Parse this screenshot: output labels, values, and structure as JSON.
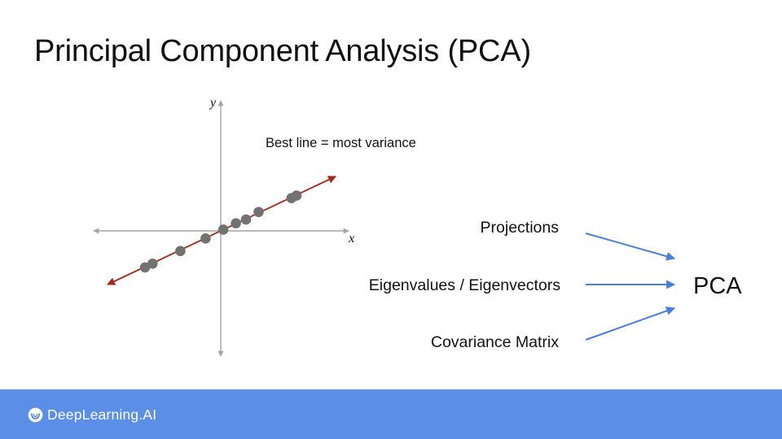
{
  "title": "Principal Component Analysis (PCA)",
  "plot": {
    "x_axis_label": "x",
    "y_axis_label": "y",
    "caption": "Best line = most variance",
    "points": [
      [
        -3.0,
        -1.45
      ],
      [
        -2.7,
        -1.3
      ],
      [
        -1.6,
        -0.8
      ],
      [
        -0.6,
        -0.3
      ],
      [
        0.1,
        0.05
      ],
      [
        0.6,
        0.3
      ],
      [
        1.0,
        0.45
      ],
      [
        1.5,
        0.75
      ],
      [
        2.8,
        1.3
      ],
      [
        3.0,
        1.4
      ]
    ],
    "colors": {
      "axis": "#a4a4a4",
      "best_line": "#a52a1a",
      "points": "#727272"
    }
  },
  "flow": {
    "inputs": [
      "Projections",
      "Eigenvalues / Eigenvectors",
      "Covariance Matrix"
    ],
    "output": "PCA",
    "arrow_color": "#4a7fd9"
  },
  "footer": {
    "brand": "DeepLearning.AI",
    "background_color": "#5b8ee6",
    "logo_icon": "deeplearning-logo-icon"
  }
}
